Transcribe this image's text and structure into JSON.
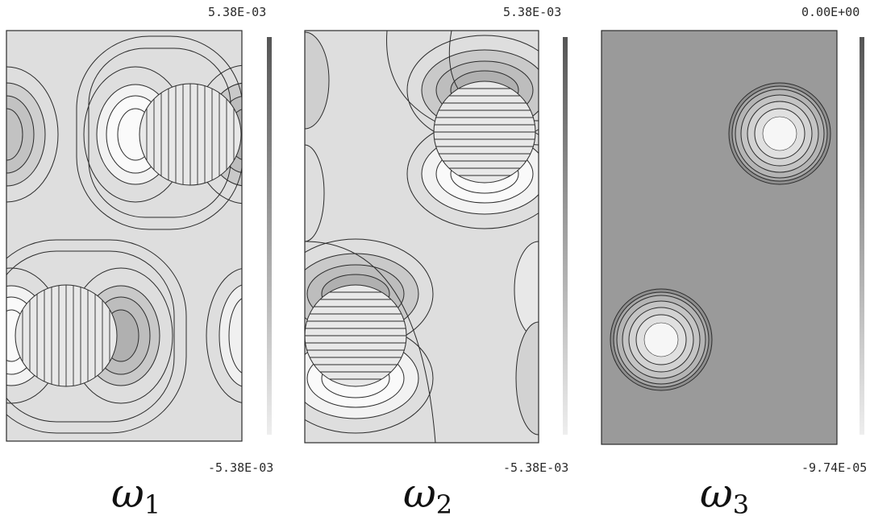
{
  "panels": [
    {
      "id": "omega1",
      "mode_symbol": "ω",
      "mode_index": "1",
      "colorbar_max": "5.38E-03",
      "colorbar_min": "-5.38E-03",
      "hatch": "vertical"
    },
    {
      "id": "omega2",
      "mode_symbol": "ω",
      "mode_index": "2",
      "colorbar_max": "5.38E-03",
      "colorbar_min": "-5.38E-03",
      "hatch": "horizontal"
    },
    {
      "id": "omega3",
      "mode_symbol": "ω",
      "mode_index": "3",
      "colorbar_max": "0.00E+00",
      "colorbar_min": "-9.74E-05",
      "hatch": "none"
    }
  ],
  "colors": {
    "background_light": "#dcdcdc",
    "background_dark": "#9a9a9a",
    "contour_line": "#2b2b2b",
    "colorbar_top": "#555555",
    "colorbar_bottom": "#eeeeee"
  }
}
